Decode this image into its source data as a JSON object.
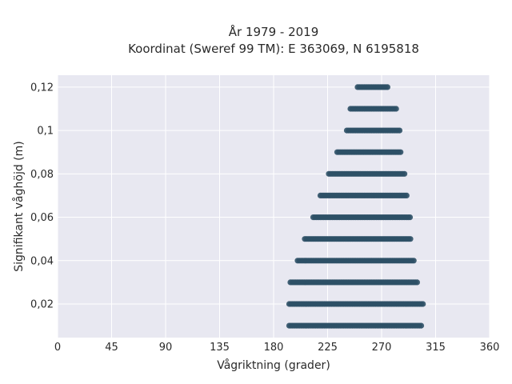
{
  "chart_data": {
    "type": "scatter",
    "title_line1": "År 1979 - 2019",
    "title_line2": "Koordinat (Sweref 99 TM): E 363069, N 6195818",
    "xlabel": "Vågriktning (grader)",
    "ylabel": "Signifikant våghöjd (m)",
    "xlim": [
      0,
      360
    ],
    "ylim": [
      0.0045,
      0.1255
    ],
    "x_ticks": [
      0,
      45,
      90,
      135,
      180,
      225,
      270,
      315,
      360
    ],
    "x_tick_labels": [
      "0",
      "45",
      "90",
      "135",
      "180",
      "225",
      "270",
      "315",
      "360"
    ],
    "y_ticks": [
      0.02,
      0.04,
      0.06,
      0.08,
      0.1,
      0.12
    ],
    "y_tick_labels": [
      "0,02",
      "0,04",
      "0,06",
      "0,08",
      "0,1",
      "0,12"
    ],
    "grid": true,
    "marker_color": "#2e5066",
    "plot_background": "#e8e8f1",
    "bands": [
      {
        "y": 0.01,
        "x_min": 193,
        "x_max": 304
      },
      {
        "y": 0.02,
        "x_min": 193,
        "x_max": 305
      },
      {
        "y": 0.03,
        "x_min": 194,
        "x_max": 300
      },
      {
        "y": 0.04,
        "x_min": 200,
        "x_max": 297
      },
      {
        "y": 0.05,
        "x_min": 206,
        "x_max": 294
      },
      {
        "y": 0.06,
        "x_min": 213,
        "x_max": 294
      },
      {
        "y": 0.07,
        "x_min": 219,
        "x_max": 292
      },
      {
        "y": 0.08,
        "x_min": 226,
        "x_max": 290
      },
      {
        "y": 0.09,
        "x_min": 233,
        "x_max": 287
      },
      {
        "y": 0.1,
        "x_min": 241,
        "x_max": 285
      },
      {
        "y": 0.11,
        "x_min": 244,
        "x_max": 283
      },
      {
        "y": 0.12,
        "x_min": 250,
        "x_max": 276
      }
    ]
  }
}
